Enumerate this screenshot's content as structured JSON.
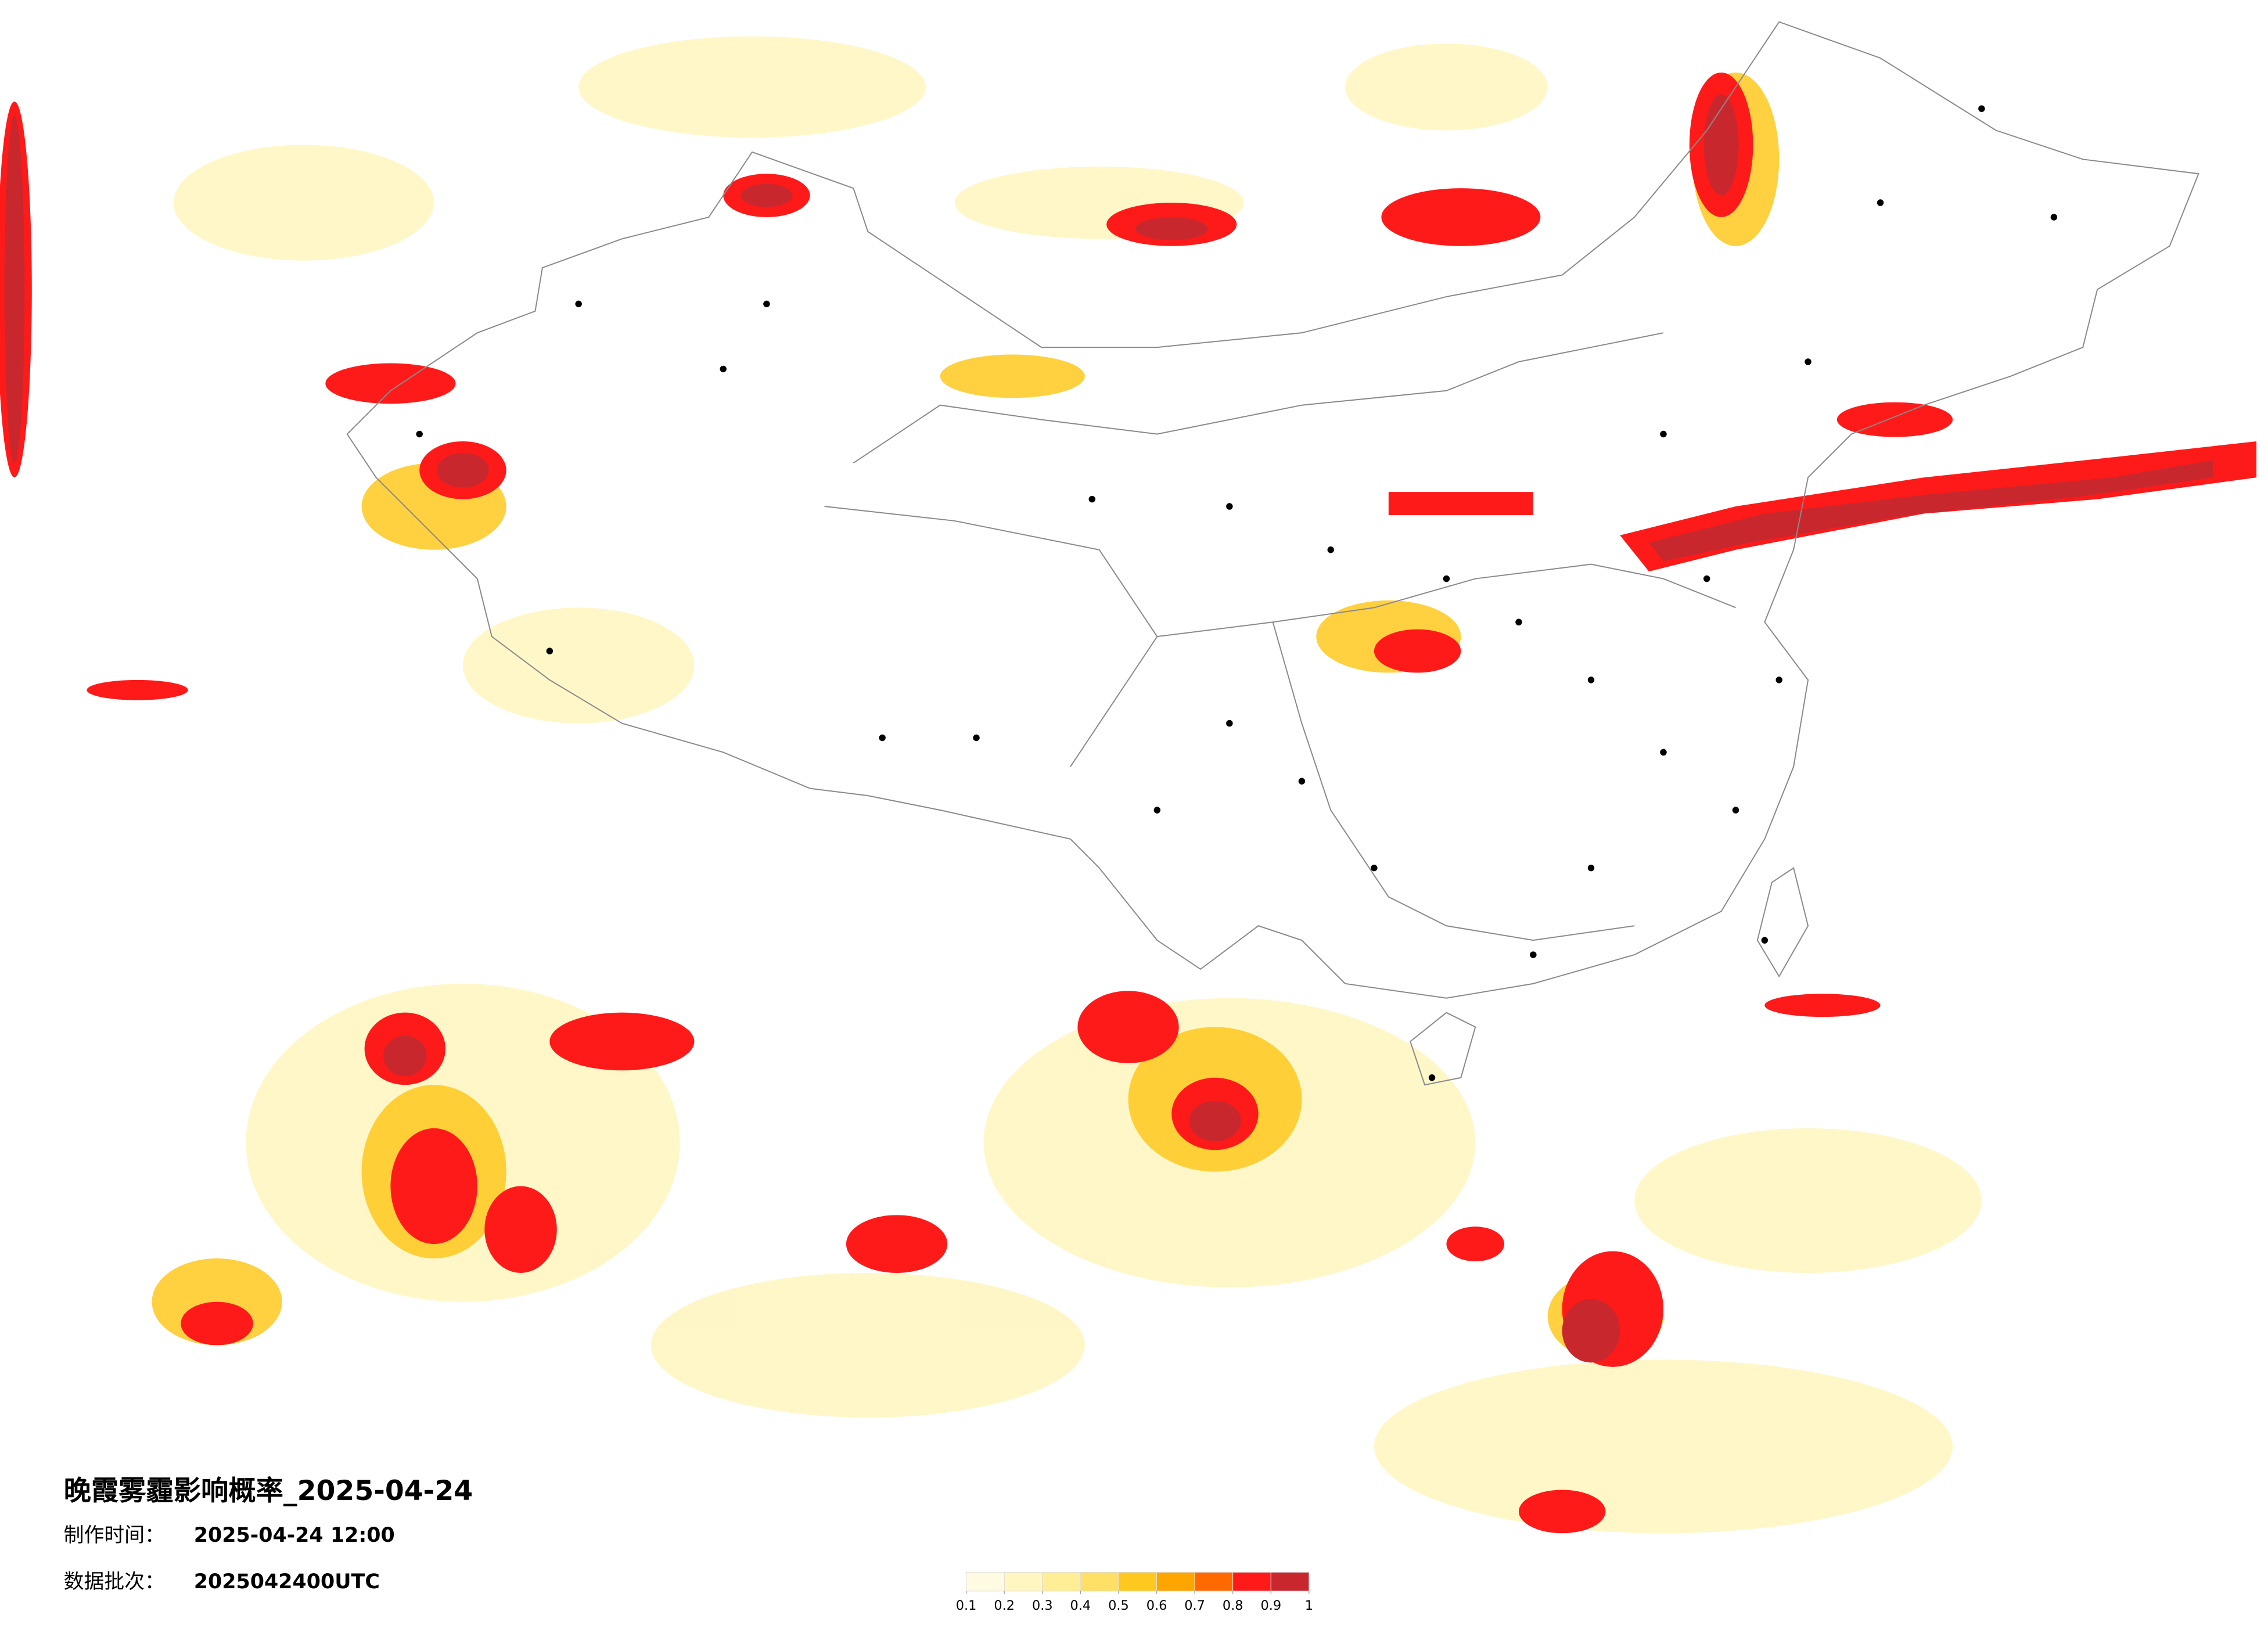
{
  "title": "晚霞雾霾影响概率_2025-04-24",
  "info": [
    {
      "label": "制作时间：",
      "value": "2025-04-24 12:00"
    },
    {
      "label": "数据批次：",
      "value": "2025042400UTC"
    }
  ],
  "colorbar": {
    "ticks": [
      0.1,
      0.2,
      0.3,
      0.4,
      0.5,
      0.6,
      0.7,
      0.8,
      0.9,
      1
    ],
    "colors": [
      "#fffbe3",
      "#fff6c2",
      "#ffee96",
      "#ffe066",
      "#ffc81e",
      "#ffa500",
      "#ff6a00",
      "#ff1a1a",
      "#c8282d"
    ]
  }
}
